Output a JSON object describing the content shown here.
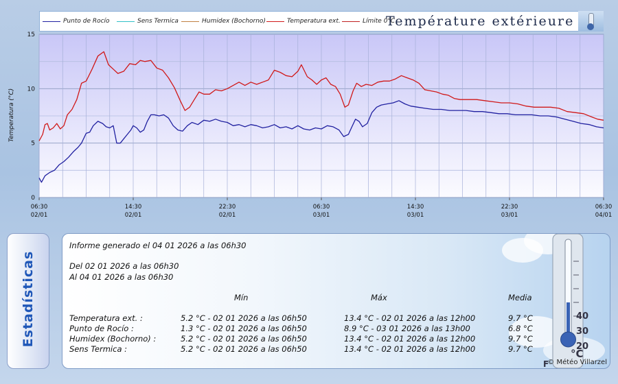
{
  "chart_title": "Température extérieure",
  "legend": [
    {
      "label": "Punto de Rocío",
      "color": "#2020a0"
    },
    {
      "label": "Sens Termica",
      "color": "#30c0c8"
    },
    {
      "label": "Humidex (Bochorno)",
      "color": "#c08040"
    },
    {
      "label": "Temperatura ext.",
      "color": "#d01818"
    },
    {
      "label": "Límite 0°C",
      "color": "#c02020"
    }
  ],
  "chart_data": {
    "type": "line",
    "ylabel": "Temperatura (°C)",
    "ylim": [
      0,
      15
    ],
    "yticks": [
      0,
      5,
      10,
      15
    ],
    "grid": true,
    "x_range_hours": [
      0,
      48
    ],
    "xticks": [
      {
        "time": "06:30",
        "date": "02/01",
        "h": 0
      },
      {
        "time": "14:30",
        "date": "02/01",
        "h": 8
      },
      {
        "time": "22:30",
        "date": "02/01",
        "h": 16
      },
      {
        "time": "06:30",
        "date": "03/01",
        "h": 24
      },
      {
        "time": "14:30",
        "date": "03/01",
        "h": 32
      },
      {
        "time": "22:30",
        "date": "03/01",
        "h": 40
      },
      {
        "time": "06:30",
        "date": "04/01",
        "h": 48
      }
    ],
    "series": [
      {
        "name": "Temperatura ext.",
        "color": "#d01818",
        "points": [
          [
            0,
            5.2
          ],
          [
            0.3,
            5.8
          ],
          [
            0.5,
            6.7
          ],
          [
            0.7,
            6.8
          ],
          [
            0.9,
            6.2
          ],
          [
            1.2,
            6.4
          ],
          [
            1.5,
            6.8
          ],
          [
            1.8,
            6.3
          ],
          [
            2.1,
            6.6
          ],
          [
            2.4,
            7.6
          ],
          [
            2.8,
            8.1
          ],
          [
            3.2,
            9.0
          ],
          [
            3.6,
            10.5
          ],
          [
            4.0,
            10.7
          ],
          [
            4.5,
            11.8
          ],
          [
            5.0,
            13.0
          ],
          [
            5.5,
            13.4
          ],
          [
            5.9,
            12.2
          ],
          [
            6.3,
            11.8
          ],
          [
            6.7,
            11.4
          ],
          [
            7.2,
            11.6
          ],
          [
            7.7,
            12.3
          ],
          [
            8.2,
            12.2
          ],
          [
            8.6,
            12.6
          ],
          [
            9.0,
            12.5
          ],
          [
            9.5,
            12.6
          ],
          [
            10.0,
            11.9
          ],
          [
            10.5,
            11.7
          ],
          [
            11.0,
            11.0
          ],
          [
            11.5,
            10.1
          ],
          [
            12.0,
            8.9
          ],
          [
            12.4,
            8.0
          ],
          [
            12.8,
            8.3
          ],
          [
            13.2,
            9.0
          ],
          [
            13.6,
            9.7
          ],
          [
            14.0,
            9.5
          ],
          [
            14.5,
            9.5
          ],
          [
            15.0,
            9.9
          ],
          [
            15.5,
            9.8
          ],
          [
            16.0,
            10.0
          ],
          [
            16.5,
            10.3
          ],
          [
            17.0,
            10.6
          ],
          [
            17.5,
            10.3
          ],
          [
            18.0,
            10.6
          ],
          [
            18.5,
            10.4
          ],
          [
            19.0,
            10.6
          ],
          [
            19.5,
            10.8
          ],
          [
            20.0,
            11.7
          ],
          [
            20.5,
            11.5
          ],
          [
            21.0,
            11.2
          ],
          [
            21.5,
            11.1
          ],
          [
            22.0,
            11.6
          ],
          [
            22.3,
            12.2
          ],
          [
            22.8,
            11.1
          ],
          [
            23.2,
            10.8
          ],
          [
            23.6,
            10.4
          ],
          [
            24.0,
            10.8
          ],
          [
            24.4,
            11.0
          ],
          [
            24.8,
            10.4
          ],
          [
            25.2,
            10.2
          ],
          [
            25.6,
            9.5
          ],
          [
            26.0,
            8.3
          ],
          [
            26.3,
            8.5
          ],
          [
            26.7,
            9.8
          ],
          [
            27.0,
            10.5
          ],
          [
            27.4,
            10.2
          ],
          [
            27.8,
            10.4
          ],
          [
            28.3,
            10.3
          ],
          [
            28.8,
            10.6
          ],
          [
            29.3,
            10.7
          ],
          [
            29.8,
            10.7
          ],
          [
            30.3,
            10.9
          ],
          [
            30.8,
            11.2
          ],
          [
            31.3,
            11.0
          ],
          [
            31.8,
            10.8
          ],
          [
            32.3,
            10.5
          ],
          [
            32.8,
            9.9
          ],
          [
            33.3,
            9.8
          ],
          [
            33.8,
            9.7
          ],
          [
            34.3,
            9.5
          ],
          [
            34.8,
            9.4
          ],
          [
            35.3,
            9.1
          ],
          [
            35.8,
            9.0
          ],
          [
            36.5,
            9.0
          ],
          [
            37.2,
            9.0
          ],
          [
            37.9,
            8.9
          ],
          [
            38.6,
            8.8
          ],
          [
            39.3,
            8.7
          ],
          [
            40.0,
            8.7
          ],
          [
            40.7,
            8.6
          ],
          [
            41.4,
            8.4
          ],
          [
            42.1,
            8.3
          ],
          [
            42.8,
            8.3
          ],
          [
            43.5,
            8.3
          ],
          [
            44.2,
            8.2
          ],
          [
            44.9,
            7.9
          ],
          [
            45.6,
            7.8
          ],
          [
            46.3,
            7.7
          ],
          [
            47.0,
            7.4
          ],
          [
            47.5,
            7.2
          ],
          [
            48.0,
            7.1
          ]
        ]
      },
      {
        "name": "Punto de Rocío",
        "color": "#2020a0",
        "points": [
          [
            0,
            1.8
          ],
          [
            0.2,
            1.4
          ],
          [
            0.5,
            2.0
          ],
          [
            0.9,
            2.3
          ],
          [
            1.3,
            2.5
          ],
          [
            1.7,
            3.0
          ],
          [
            2.1,
            3.3
          ],
          [
            2.5,
            3.7
          ],
          [
            2.9,
            4.2
          ],
          [
            3.3,
            4.6
          ],
          [
            3.6,
            5.0
          ],
          [
            4.0,
            5.9
          ],
          [
            4.3,
            6.0
          ],
          [
            4.6,
            6.6
          ],
          [
            5.0,
            7.0
          ],
          [
            5.4,
            6.8
          ],
          [
            5.7,
            6.5
          ],
          [
            6.0,
            6.4
          ],
          [
            6.3,
            6.6
          ],
          [
            6.6,
            5.0
          ],
          [
            6.9,
            5.0
          ],
          [
            7.2,
            5.4
          ],
          [
            7.5,
            5.8
          ],
          [
            7.8,
            6.2
          ],
          [
            8.0,
            6.6
          ],
          [
            8.3,
            6.4
          ],
          [
            8.6,
            6.0
          ],
          [
            8.9,
            6.2
          ],
          [
            9.2,
            7.0
          ],
          [
            9.5,
            7.6
          ],
          [
            9.8,
            7.6
          ],
          [
            10.2,
            7.5
          ],
          [
            10.6,
            7.6
          ],
          [
            11.0,
            7.3
          ],
          [
            11.4,
            6.6
          ],
          [
            11.8,
            6.2
          ],
          [
            12.2,
            6.1
          ],
          [
            12.6,
            6.6
          ],
          [
            13.0,
            6.9
          ],
          [
            13.5,
            6.7
          ],
          [
            14.0,
            7.1
          ],
          [
            14.5,
            7.0
          ],
          [
            15.0,
            7.2
          ],
          [
            15.5,
            7.0
          ],
          [
            16.0,
            6.9
          ],
          [
            16.5,
            6.6
          ],
          [
            17.0,
            6.7
          ],
          [
            17.5,
            6.5
          ],
          [
            18.0,
            6.7
          ],
          [
            18.5,
            6.6
          ],
          [
            19.0,
            6.4
          ],
          [
            19.5,
            6.5
          ],
          [
            20.0,
            6.7
          ],
          [
            20.5,
            6.4
          ],
          [
            21.0,
            6.5
          ],
          [
            21.5,
            6.3
          ],
          [
            22.0,
            6.6
          ],
          [
            22.5,
            6.3
          ],
          [
            23.0,
            6.2
          ],
          [
            23.5,
            6.4
          ],
          [
            24.0,
            6.3
          ],
          [
            24.5,
            6.6
          ],
          [
            25.0,
            6.5
          ],
          [
            25.5,
            6.2
          ],
          [
            25.9,
            5.6
          ],
          [
            26.3,
            5.8
          ],
          [
            26.6,
            6.5
          ],
          [
            26.9,
            7.2
          ],
          [
            27.2,
            7.0
          ],
          [
            27.5,
            6.5
          ],
          [
            27.9,
            6.8
          ],
          [
            28.3,
            7.8
          ],
          [
            28.7,
            8.3
          ],
          [
            29.1,
            8.5
          ],
          [
            29.6,
            8.6
          ],
          [
            30.1,
            8.7
          ],
          [
            30.6,
            8.9
          ],
          [
            31.1,
            8.6
          ],
          [
            31.6,
            8.4
          ],
          [
            32.2,
            8.3
          ],
          [
            32.8,
            8.2
          ],
          [
            33.5,
            8.1
          ],
          [
            34.2,
            8.1
          ],
          [
            34.9,
            8.0
          ],
          [
            35.6,
            8.0
          ],
          [
            36.3,
            8.0
          ],
          [
            37.0,
            7.9
          ],
          [
            37.7,
            7.9
          ],
          [
            38.4,
            7.8
          ],
          [
            39.1,
            7.7
          ],
          [
            39.8,
            7.7
          ],
          [
            40.5,
            7.6
          ],
          [
            41.2,
            7.6
          ],
          [
            41.9,
            7.6
          ],
          [
            42.6,
            7.5
          ],
          [
            43.3,
            7.5
          ],
          [
            44.0,
            7.4
          ],
          [
            44.7,
            7.2
          ],
          [
            45.4,
            7.0
          ],
          [
            46.1,
            6.8
          ],
          [
            46.8,
            6.7
          ],
          [
            47.4,
            6.5
          ],
          [
            48.0,
            6.4
          ]
        ]
      }
    ]
  },
  "stats": {
    "tab_label": "Estadísticas",
    "report_line": "Informe generado el 04 01 2026 a las 06h30",
    "period_from": "Del 02 01 2026 a las 06h30",
    "period_to": "Al 04 01 2026 a las 06h30",
    "headers": {
      "min": "Mín",
      "max": "Máx",
      "avg": "Media"
    },
    "rows": [
      {
        "label": "Temperatura ext. :",
        "min": "5.2 °C - 02 01 2026 a las 06h50",
        "max": "13.4 °C - 02 01 2026 a las 12h00",
        "avg": "9.7 °C"
      },
      {
        "label": "Punto de Rocío :",
        "min": "1.3 °C - 02 01 2026 a las 06h50",
        "max": "8.9 °C - 03 01 2026 a las 13h00",
        "avg": "6.8 °C"
      },
      {
        "label": "Humidex (Bochorno) :",
        "min": "5.2 °C - 02 01 2026 a las 06h50",
        "max": "13.4 °C - 02 01 2026 a las 12h00",
        "avg": "9.7 °C"
      },
      {
        "label": "Sens Termica :",
        "min": "5.2 °C - 02 01 2026 a las 06h50",
        "max": "13.4 °C - 02 01 2026 a las 12h00",
        "avg": "9.7 °C"
      }
    ],
    "thermo_ticks": [
      "40",
      "30",
      "20"
    ],
    "thermo_unit_c": "°C",
    "thermo_unit_f": "°F",
    "watermark": "© Météo Villarzel"
  }
}
